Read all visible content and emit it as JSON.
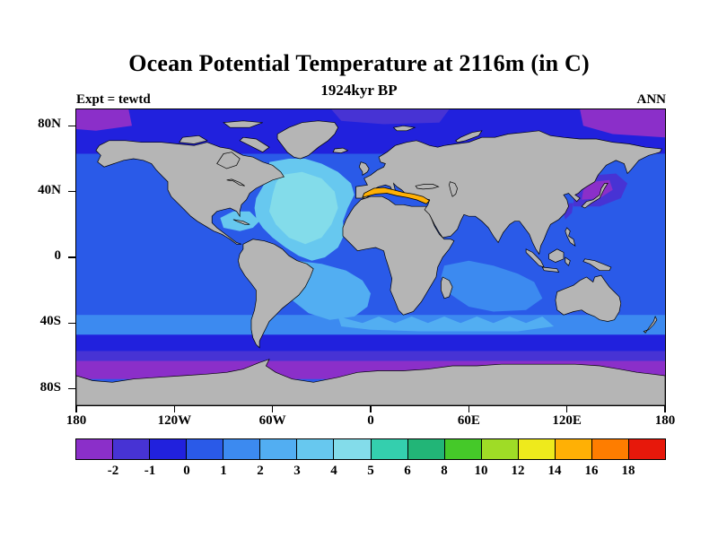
{
  "figure": {
    "title": "Ocean Potential Temperature at 2116m (in C)",
    "subtitle": "1924kyr BP",
    "experiment_label": "Expt = tewtd",
    "season_label": "ANN"
  },
  "chart_data": {
    "type": "heatmap",
    "subtype": "filled-contour-world-map",
    "title": "Ocean Potential Temperature at 2116m (in C)",
    "subtitle": "1924kyr BP",
    "experiment": "tewtd",
    "season": "ANN",
    "units": "C",
    "x_axis": {
      "label": "",
      "ticks": [
        "180",
        "120W",
        "60W",
        "0",
        "60E",
        "120E",
        "180"
      ]
    },
    "y_axis": {
      "label": "",
      "ticks": [
        "80N",
        "40N",
        "0",
        "40S",
        "80S"
      ]
    },
    "colorbar": {
      "tick_labels": [
        "-2",
        "-1",
        "0",
        "1",
        "2",
        "3",
        "4",
        "5",
        "6",
        "8",
        "10",
        "12",
        "14",
        "16",
        "18"
      ],
      "colors": [
        "#8b2fc9",
        "#4733d4",
        "#2121dd",
        "#2a5ae8",
        "#3c8af0",
        "#52aef2",
        "#67c8ef",
        "#83dcea",
        "#34cfae",
        "#22b577",
        "#45c929",
        "#9fdc26",
        "#eeea1c",
        "#ffb005",
        "#fe7d00",
        "#e7180b"
      ]
    },
    "land_color": "#b5b5b5",
    "region_values": [
      {
        "region": "Pacific Ocean (bulk)",
        "approx_temp_C": "0 to 1"
      },
      {
        "region": "North Atlantic",
        "approx_temp_C": "3 to 5"
      },
      {
        "region": "South Atlantic",
        "approx_temp_C": "2 to 3"
      },
      {
        "region": "Indian Ocean",
        "approx_temp_C": "1 to 2"
      },
      {
        "region": "Southern mid-latitude band near 40S",
        "approx_temp_C": "1 to 3"
      },
      {
        "region": "Mediterranean Sea",
        "approx_temp_C": "14 to 16"
      },
      {
        "region": "Arctic Ocean",
        "approx_temp_C": "-2 to 0"
      },
      {
        "region": "Southern Ocean near Antarctica",
        "approx_temp_C": "-2 to -1"
      },
      {
        "region": "Northwest Pacific / Sea of Japan",
        "approx_temp_C": "-2 to -1"
      }
    ]
  }
}
